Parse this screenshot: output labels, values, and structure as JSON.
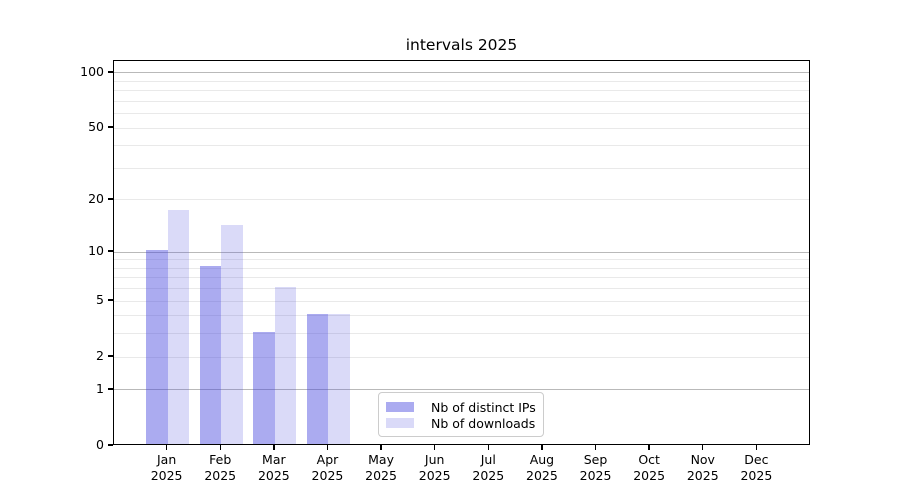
{
  "page": {
    "title": "intervals 2025"
  },
  "chart_data": {
    "type": "bar",
    "title": "intervals 2025",
    "categories": [
      "Jan 2025",
      "Feb 2025",
      "Mar 2025",
      "Apr 2025",
      "May 2025",
      "Jun 2025",
      "Jul 2025",
      "Aug 2025",
      "Sep 2025",
      "Oct 2025",
      "Nov 2025",
      "Dec 2025"
    ],
    "month_labels": [
      {
        "line1": "Jan",
        "line2": "2025"
      },
      {
        "line1": "Feb",
        "line2": "2025"
      },
      {
        "line1": "Mar",
        "line2": "2025"
      },
      {
        "line1": "Apr",
        "line2": "2025"
      },
      {
        "line1": "May",
        "line2": "2025"
      },
      {
        "line1": "Jun",
        "line2": "2025"
      },
      {
        "line1": "Jul",
        "line2": "2025"
      },
      {
        "line1": "Aug",
        "line2": "2025"
      },
      {
        "line1": "Sep",
        "line2": "2025"
      },
      {
        "line1": "Oct",
        "line2": "2025"
      },
      {
        "line1": "Nov",
        "line2": "2025"
      },
      {
        "line1": "Dec",
        "line2": "2025"
      }
    ],
    "series": [
      {
        "name": "Nb of distinct IPs",
        "values": [
          10,
          8,
          3,
          4,
          0,
          0,
          0,
          0,
          0,
          0,
          0,
          0
        ],
        "color": "rgba(68,68,221,0.45)"
      },
      {
        "name": "Nb of downloads",
        "values": [
          17,
          14,
          6,
          4,
          0,
          0,
          0,
          0,
          0,
          0,
          0,
          0
        ],
        "color": "rgba(68,68,221,0.20)"
      }
    ],
    "xlabel": "",
    "ylabel": "",
    "y_scale": "symlog log(1+v)",
    "ylim": [
      0,
      116
    ],
    "y_ticks": [
      0,
      1,
      2,
      5,
      10,
      20,
      50,
      100
    ],
    "y_major_gridlines": [
      1,
      10,
      100
    ],
    "y_minor_gridlines": [
      2,
      3,
      4,
      5,
      6,
      7,
      8,
      9,
      20,
      30,
      40,
      50,
      60,
      70,
      80,
      90
    ],
    "grid": true,
    "legend_position": "inside bottom, left of center"
  },
  "style": {
    "bar_color_primary": "rgba(68,68,221,0.45)",
    "bar_color_secondary": "rgba(68,68,221,0.20)",
    "major_grid_color": "#b9b9b9",
    "minor_grid_color": "#e9e9e9",
    "axis_color": "#000000",
    "legend_border_color": "#cccccc",
    "background_color": "#ffffff"
  }
}
